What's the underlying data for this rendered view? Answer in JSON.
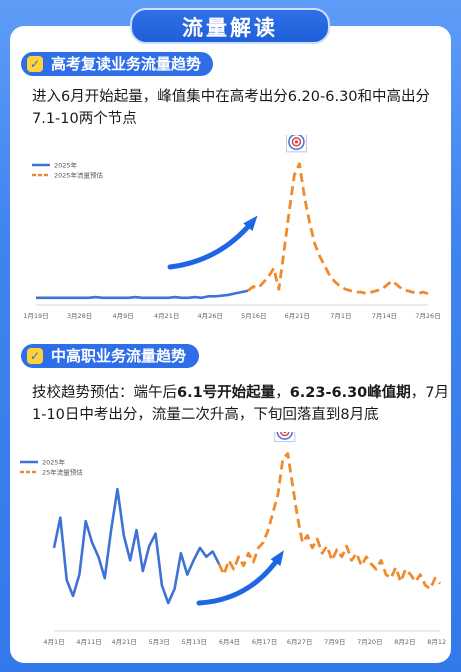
{
  "header": {
    "title": "流量解读"
  },
  "section1": {
    "title": "高考复读业务流量趋势",
    "desc_line1": "进入6月开始起量，峰值集中在高考出分6.20-6.30和中高出分",
    "desc_line2": "7.1-10两个节点"
  },
  "section2": {
    "title": "中高职业务流量趋势",
    "desc_a": "技校趋势预估：端午后",
    "desc_b": "6.1号开始起量",
    "desc_c": "，",
    "desc_d": "6.23-6.30峰值期",
    "desc_e": "，7月",
    "desc_line2": "1-10日中考出分，流量二次升高，下旬回落直到8月底"
  },
  "colors": {
    "actual": "#3f72d6",
    "forecast": "#f08a2c",
    "arrow": "#1f66e6",
    "accent": "#2e6ee9"
  },
  "chart_data": [
    {
      "type": "line",
      "title": "",
      "legend_position": "top-left",
      "x_ticks": [
        "1月19日",
        "3月28日",
        "4月9日",
        "4月21日",
        "4月26日",
        "5月16日",
        "6月21日",
        "7月1日",
        "7月14日",
        "7月26日"
      ],
      "series": [
        {
          "name": "2025年",
          "style": "solid",
          "values": [
            3,
            3,
            3,
            3,
            3,
            3,
            3,
            3,
            3,
            3.5,
            3,
            3,
            3,
            3,
            3,
            3.5,
            3,
            3,
            3,
            3,
            3,
            3.5,
            3,
            3,
            3.5,
            3,
            4,
            4,
            4.5,
            5,
            6,
            7,
            8
          ]
        },
        {
          "name": "2025年流量预估",
          "style": "dashed",
          "values": [
            8,
            11,
            10,
            14,
            18,
            24,
            9,
            36,
            64,
            90,
            98,
            74,
            56,
            41,
            32,
            25,
            18,
            14,
            11,
            9,
            8,
            7,
            7,
            6,
            7,
            8,
            9,
            12,
            15,
            12,
            9,
            8,
            7,
            6,
            7,
            6
          ]
        }
      ],
      "annotations": [
        "peak-target-icon",
        "upward-arrow"
      ]
    },
    {
      "type": "line",
      "title": "",
      "legend_position": "top-left",
      "x_ticks": [
        "4月1日",
        "4月11日",
        "4月21日",
        "5月3日",
        "5月13日",
        "6月4日",
        "6月17日",
        "6月27日",
        "7月9日",
        "7月20日",
        "8月2日",
        "8月12日"
      ],
      "series": [
        {
          "name": "2025年",
          "style": "solid",
          "values": [
            45,
            62,
            27,
            18,
            30,
            60,
            48,
            40,
            28,
            55,
            78,
            52,
            38,
            55,
            32,
            46,
            53,
            24,
            14,
            22,
            42,
            30,
            38,
            45,
            40,
            43,
            36
          ]
        },
        {
          "name": "25年流量预估",
          "style": "dashed",
          "values": [
            36,
            30,
            38,
            33,
            40,
            35,
            42,
            37,
            45,
            48,
            55,
            65,
            75,
            95,
            98,
            80,
            62,
            48,
            52,
            45,
            50,
            42,
            46,
            38,
            44,
            40,
            46,
            38,
            42,
            35,
            40,
            36,
            33,
            38,
            30,
            28,
            34,
            26,
            33,
            30,
            26,
            30,
            24,
            22,
            28,
            25
          ]
        }
      ],
      "annotations": [
        "peak-target-icon",
        "upward-arrow"
      ]
    }
  ]
}
